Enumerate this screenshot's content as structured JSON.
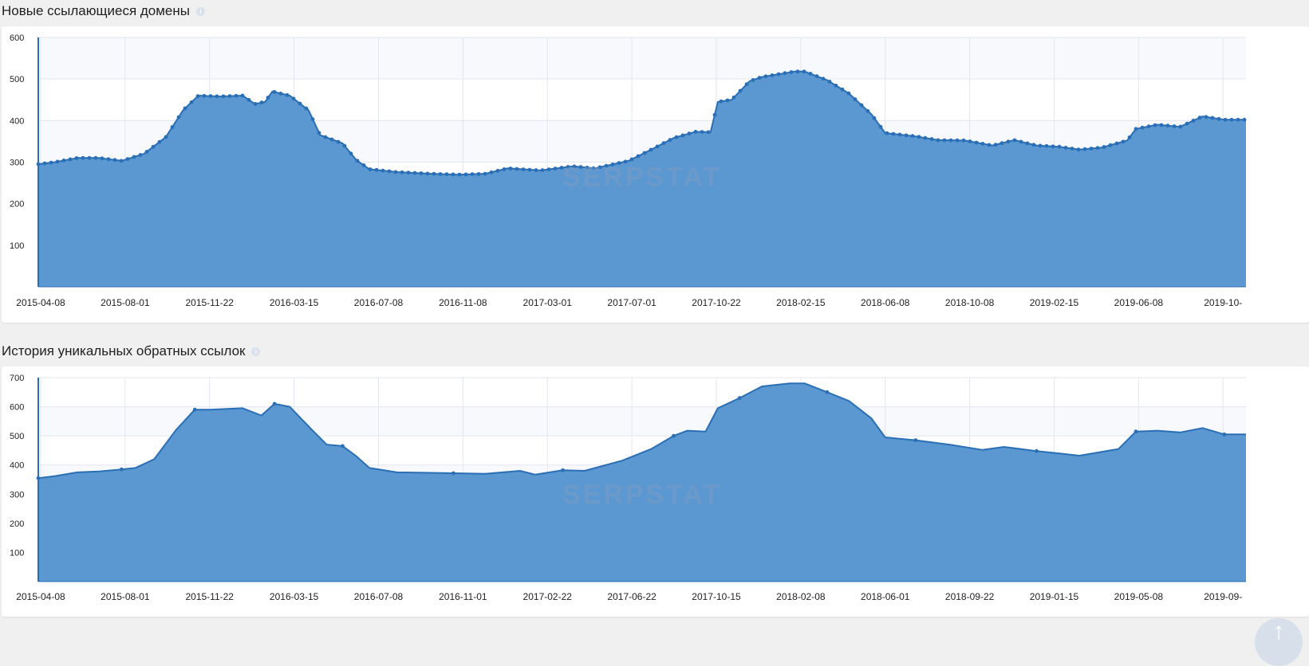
{
  "sections": [
    {
      "title": "Новые ссылающиеся домены"
    },
    {
      "title": "История уникальных обратных ссылок"
    }
  ],
  "watermark": "SERPSTAT",
  "icons": {
    "info": "info-icon",
    "scroll_top": "arrow-up-icon"
  },
  "colors": {
    "fill": "#5b97d0",
    "line": "#2a6fb6",
    "grid": "#e2e6ee",
    "band": "#f7f9fc"
  },
  "chart_data": [
    {
      "type": "area",
      "title": "Новые ссылающиеся домены",
      "x_start": "2015-04-08",
      "x_end": "2019-10-31",
      "x_ticks": [
        "2015-04-08",
        "2015-08-01",
        "2015-11-22",
        "2016-03-15",
        "2016-07-08",
        "2016-11-08",
        "2017-03-01",
        "2017-07-01",
        "2017-10-22",
        "2018-02-15",
        "2018-06-08",
        "2018-10-08",
        "2019-02-15",
        "2019-06-08",
        "2019-10-"
      ],
      "y_ticks": [
        100,
        200,
        300,
        400,
        500,
        600
      ],
      "ylim": [
        0,
        600
      ],
      "markers": true,
      "points": [
        [
          "2015-04-08",
          295
        ],
        [
          "2015-05-01",
          300
        ],
        [
          "2015-06-01",
          310
        ],
        [
          "2015-07-01",
          310
        ],
        [
          "2015-08-01",
          303
        ],
        [
          "2015-09-01",
          320
        ],
        [
          "2015-10-01",
          360
        ],
        [
          "2015-10-25",
          425
        ],
        [
          "2015-11-15",
          460
        ],
        [
          "2015-12-15",
          458
        ],
        [
          "2016-01-15",
          460
        ],
        [
          "2016-02-01",
          440
        ],
        [
          "2016-02-15",
          445
        ],
        [
          "2016-02-25",
          470
        ],
        [
          "2016-03-20",
          460
        ],
        [
          "2016-04-15",
          425
        ],
        [
          "2016-05-01",
          365
        ],
        [
          "2016-06-01",
          345
        ],
        [
          "2016-06-20",
          305
        ],
        [
          "2016-07-08",
          283
        ],
        [
          "2016-08-15",
          276
        ],
        [
          "2016-10-01",
          272
        ],
        [
          "2016-11-08",
          270
        ],
        [
          "2016-12-15",
          272
        ],
        [
          "2017-01-15",
          285
        ],
        [
          "2017-03-01",
          280
        ],
        [
          "2017-04-15",
          290
        ],
        [
          "2017-05-15",
          285
        ],
        [
          "2017-07-01",
          303
        ],
        [
          "2017-08-01",
          330
        ],
        [
          "2017-09-01",
          358
        ],
        [
          "2017-10-01",
          373
        ],
        [
          "2017-10-22",
          372
        ],
        [
          "2017-11-01",
          445
        ],
        [
          "2017-11-20",
          450
        ],
        [
          "2017-12-15",
          495
        ],
        [
          "2018-01-01",
          505
        ],
        [
          "2018-02-15",
          518
        ],
        [
          "2018-03-01",
          518
        ],
        [
          "2018-04-01",
          497
        ],
        [
          "2018-05-01",
          465
        ],
        [
          "2018-06-01",
          415
        ],
        [
          "2018-06-20",
          370
        ],
        [
          "2018-08-01",
          362
        ],
        [
          "2018-09-01",
          353
        ],
        [
          "2018-10-08",
          352
        ],
        [
          "2018-11-15",
          340
        ],
        [
          "2018-12-15",
          353
        ],
        [
          "2019-01-15",
          340
        ],
        [
          "2019-02-15",
          337
        ],
        [
          "2019-03-15",
          330
        ],
        [
          "2019-04-15",
          335
        ],
        [
          "2019-05-20",
          352
        ],
        [
          "2019-06-01",
          380
        ],
        [
          "2019-07-01",
          390
        ],
        [
          "2019-08-01",
          385
        ],
        [
          "2019-09-01",
          410
        ],
        [
          "2019-10-01",
          402
        ],
        [
          "2019-10-31",
          402
        ]
      ]
    },
    {
      "type": "area",
      "title": "История уникальных обратных ссылок",
      "x_start": "2015-04-08",
      "x_end": "2019-10-31",
      "x_ticks": [
        "2015-04-08",
        "2015-08-01",
        "2015-11-22",
        "2016-03-15",
        "2016-07-08",
        "2016-11-01",
        "2017-02-22",
        "2017-06-22",
        "2017-10-15",
        "2018-02-08",
        "2018-06-01",
        "2018-09-22",
        "2019-01-15",
        "2019-05-08",
        "2019-09-"
      ],
      "y_ticks": [
        100,
        200,
        300,
        400,
        500,
        600,
        700
      ],
      "ylim": [
        0,
        700
      ],
      "markers": false,
      "points": [
        [
          "2015-04-08",
          355
        ],
        [
          "2015-05-01",
          362
        ],
        [
          "2015-06-01",
          375
        ],
        [
          "2015-07-01",
          378
        ],
        [
          "2015-08-01",
          385
        ],
        [
          "2015-08-20",
          390
        ],
        [
          "2015-09-15",
          420
        ],
        [
          "2015-10-15",
          520
        ],
        [
          "2015-11-10",
          590
        ],
        [
          "2015-12-01",
          590
        ],
        [
          "2016-01-15",
          595
        ],
        [
          "2016-02-10",
          570
        ],
        [
          "2016-02-28",
          610
        ],
        [
          "2016-03-20",
          600
        ],
        [
          "2016-04-20",
          520
        ],
        [
          "2016-05-10",
          470
        ],
        [
          "2016-06-01",
          465
        ],
        [
          "2016-06-20",
          430
        ],
        [
          "2016-07-08",
          390
        ],
        [
          "2016-08-15",
          375
        ],
        [
          "2016-11-01",
          372
        ],
        [
          "2016-12-15",
          370
        ],
        [
          "2017-02-01",
          380
        ],
        [
          "2017-02-22",
          367
        ],
        [
          "2017-04-01",
          382
        ],
        [
          "2017-05-01",
          380
        ],
        [
          "2017-06-22",
          415
        ],
        [
          "2017-08-01",
          455
        ],
        [
          "2017-09-01",
          500
        ],
        [
          "2017-09-20",
          518
        ],
        [
          "2017-10-15",
          515
        ],
        [
          "2017-11-01",
          595
        ],
        [
          "2017-12-01",
          630
        ],
        [
          "2018-01-01",
          670
        ],
        [
          "2018-02-08",
          680
        ],
        [
          "2018-03-01",
          680
        ],
        [
          "2018-04-01",
          650
        ],
        [
          "2018-05-01",
          620
        ],
        [
          "2018-06-01",
          560
        ],
        [
          "2018-06-20",
          495
        ],
        [
          "2018-08-01",
          485
        ],
        [
          "2018-09-22",
          468
        ],
        [
          "2018-11-01",
          452
        ],
        [
          "2018-12-01",
          462
        ],
        [
          "2019-01-15",
          448
        ],
        [
          "2019-02-15",
          440
        ],
        [
          "2019-03-15",
          432
        ],
        [
          "2019-05-08",
          455
        ],
        [
          "2019-06-01",
          515
        ],
        [
          "2019-07-01",
          518
        ],
        [
          "2019-08-01",
          512
        ],
        [
          "2019-09-01",
          527
        ],
        [
          "2019-10-01",
          505
        ],
        [
          "2019-10-31",
          505
        ]
      ]
    }
  ]
}
